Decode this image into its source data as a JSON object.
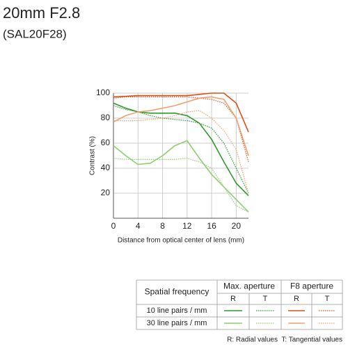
{
  "chart_data": {
    "type": "line",
    "title": "20mm F2.8",
    "subtitle": "(SAL20F28)",
    "xlabel": "Distance from optical center of lens (mm)",
    "ylabel": "Contrast (%)",
    "x": [
      0,
      2,
      4,
      6,
      8,
      10,
      12,
      14,
      16,
      18,
      20,
      22
    ],
    "xlim": [
      0,
      22
    ],
    "ylim": [
      0,
      100
    ],
    "xticks": [
      0,
      4,
      8,
      12,
      16,
      20
    ],
    "yticks": [
      20,
      40,
      60,
      80,
      100
    ],
    "grid": true,
    "series": [
      {
        "color": "#2e9a2e",
        "dotted": false,
        "values": [
          92,
          88,
          85,
          84,
          84,
          84,
          82,
          76,
          63,
          45,
          28,
          18
        ]
      },
      {
        "color": "#2e9a2e",
        "dotted": true,
        "values": [
          90,
          87,
          85,
          82,
          80,
          79,
          78,
          76,
          72,
          60,
          40,
          20
        ]
      },
      {
        "color": "#d9501e",
        "dotted": false,
        "values": [
          97,
          97.5,
          98,
          98,
          98,
          98,
          98,
          99,
          100,
          100,
          92,
          69
        ]
      },
      {
        "color": "#d9501e",
        "dotted": true,
        "values": [
          96,
          97,
          97,
          97,
          97,
          97,
          97,
          96,
          95,
          92,
          80,
          45
        ]
      },
      {
        "color": "#8ccf6e",
        "dotted": false,
        "values": [
          58,
          50,
          43,
          44,
          50,
          58,
          62,
          48,
          35,
          25,
          15,
          5
        ]
      },
      {
        "color": "#8ccf6e",
        "dotted": true,
        "values": [
          48,
          47,
          47,
          47,
          47,
          47,
          48,
          45,
          40,
          25,
          10,
          5
        ]
      },
      {
        "color": "#f0a070",
        "dotted": false,
        "values": [
          77,
          82,
          85,
          86,
          88,
          90,
          93,
          96,
          97,
          95,
          80,
          50
        ]
      },
      {
        "color": "#f0a070",
        "dotted": true,
        "values": [
          78,
          78,
          78,
          79,
          80,
          82,
          85,
          86,
          80,
          70,
          55,
          20
        ]
      }
    ],
    "legend_table": {
      "corner": "Spatial frequency",
      "groups": [
        "Max. aperture",
        "F8 aperture"
      ],
      "subheads": [
        "R",
        "T",
        "R",
        "T"
      ],
      "rows": [
        "10 line pairs / mm",
        "30 line pairs / mm"
      ],
      "note": "R: Radial values  T: Tangential values"
    }
  }
}
